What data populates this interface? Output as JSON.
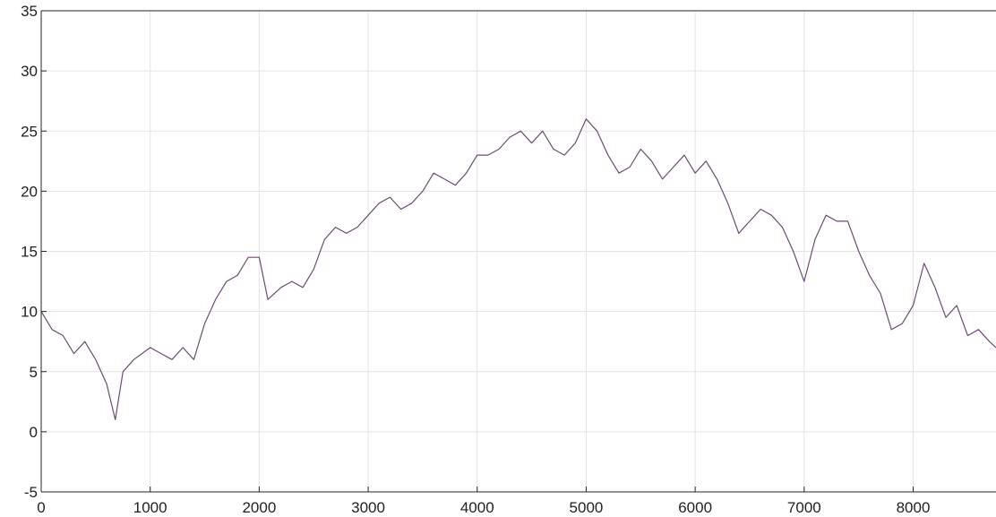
{
  "colors": {
    "series": "#6f4a75",
    "grid": "#e3e3e3",
    "axis": "#262626",
    "background": "#ffffff"
  },
  "chart_data": {
    "type": "line",
    "title": "",
    "xlabel": "",
    "ylabel": "",
    "xlim": [
      0,
      8760
    ],
    "ylim": [
      -5,
      35
    ],
    "xticks": [
      0,
      1000,
      2000,
      3000,
      4000,
      5000,
      6000,
      7000,
      8000
    ],
    "yticks": [
      -5,
      0,
      5,
      10,
      15,
      20,
      25,
      30,
      35
    ],
    "xtick_labels": [
      "0",
      "1000",
      "2000",
      "3000",
      "4000",
      "5000",
      "6000",
      "7000",
      "8000"
    ],
    "ytick_labels": [
      "-5",
      "0",
      "5",
      "10",
      "15",
      "20",
      "25",
      "30",
      "35"
    ],
    "grid": true,
    "series": [
      {
        "x": [
          0,
          100,
          200,
          300,
          400,
          500,
          600,
          680,
          750,
          850,
          1000,
          1100,
          1200,
          1300,
          1400,
          1500,
          1600,
          1700,
          1800,
          1900,
          2000,
          2080,
          2200,
          2300,
          2400,
          2500,
          2600,
          2700,
          2800,
          2900,
          3000,
          3100,
          3200,
          3300,
          3400,
          3500,
          3600,
          3700,
          3800,
          3900,
          4000,
          4100,
          4200,
          4300,
          4400,
          4500,
          4600,
          4700,
          4800,
          4900,
          5000,
          5100,
          5200,
          5300,
          5400,
          5500,
          5600,
          5700,
          5800,
          5900,
          6000,
          6100,
          6200,
          6300,
          6400,
          6500,
          6600,
          6700,
          6800,
          6900,
          7000,
          7100,
          7200,
          7300,
          7400,
          7500,
          7600,
          7700,
          7800,
          7900,
          8000,
          8100,
          8200,
          8300,
          8400,
          8500,
          8600,
          8700,
          8760
        ],
        "values": [
          10,
          8.5,
          8,
          6.5,
          7.5,
          6,
          4,
          1,
          5,
          6,
          7,
          6.5,
          6,
          7,
          6,
          9,
          11,
          12.5,
          13,
          14.5,
          14.5,
          11,
          12,
          12.5,
          12,
          13.5,
          16,
          17,
          16.5,
          17,
          18,
          19,
          19.5,
          18.5,
          19,
          20,
          21.5,
          21,
          20.5,
          21.5,
          23,
          23,
          23.5,
          24.5,
          25,
          24,
          25,
          23.5,
          23,
          24,
          26,
          25,
          23,
          21.5,
          22,
          23.5,
          22.5,
          21,
          22,
          23,
          21.5,
          22.5,
          21,
          19,
          16.5,
          17.5,
          18.5,
          18,
          17,
          15,
          12.5,
          16,
          18,
          17.5,
          17.5,
          15,
          13,
          11.5,
          8.5,
          9,
          10.5,
          14,
          12,
          9.5,
          10.5,
          8,
          8.5,
          7.5,
          7
        ]
      }
    ]
  }
}
